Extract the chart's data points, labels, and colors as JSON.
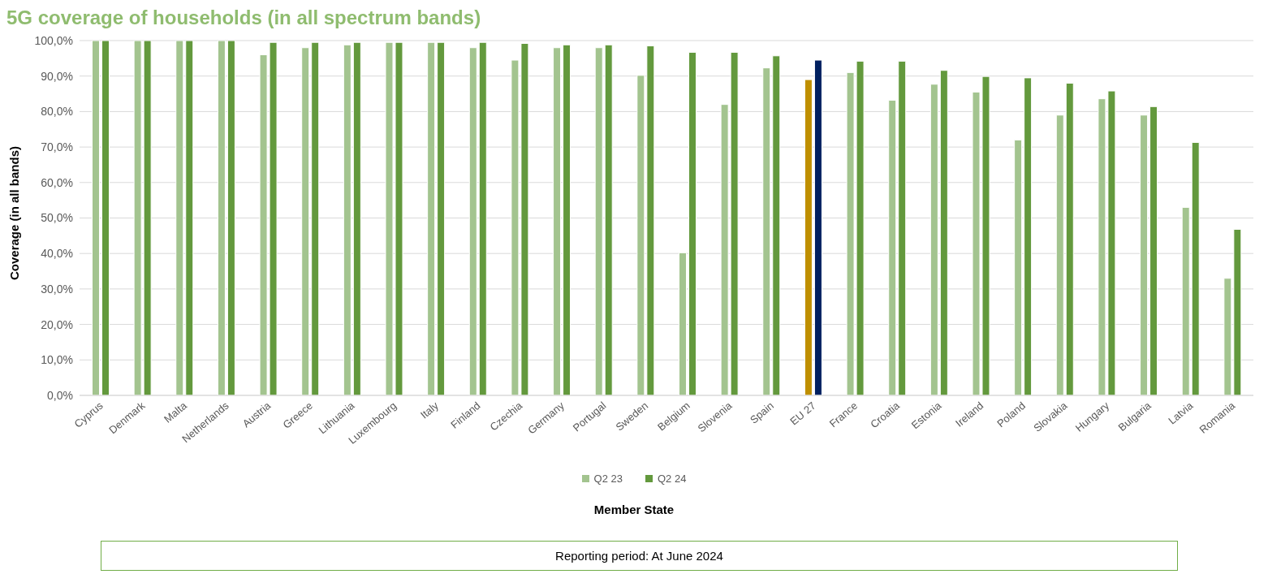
{
  "chart_data": {
    "type": "bar",
    "title": "5G coverage of households (in all spectrum bands)",
    "xlabel": "Member State",
    "ylabel": "Coverage (in all bands)",
    "categories": [
      "Cyprus",
      "Denmark",
      "Malta",
      "Netherlands",
      "Austria",
      "Greece",
      "Lithuania",
      "Luxembourg",
      "Italy",
      "Finland",
      "Czechia",
      "Germany",
      "Portugal",
      "Sweden",
      "Belgium",
      "Slovenia",
      "Spain",
      "EU 27",
      "France",
      "Croatia",
      "Estonia",
      "Ireland",
      "Poland",
      "Slovakia",
      "Hungary",
      "Bulgaria",
      "Latvia",
      "Romania"
    ],
    "series": [
      {
        "name": "Q2 23",
        "color": "#a3c48f",
        "colors": [
          "#a3c48f",
          "#a3c48f",
          "#a3c48f",
          "#a3c48f",
          "#a3c48f",
          "#a3c48f",
          "#a3c48f",
          "#a3c48f",
          "#a3c48f",
          "#a3c48f",
          "#a3c48f",
          "#a3c48f",
          "#a3c48f",
          "#a3c48f",
          "#a3c48f",
          "#a3c48f",
          "#a3c48f",
          "#bf8f00",
          "#a3c48f",
          "#a3c48f",
          "#a3c48f",
          "#a3c48f",
          "#a3c48f",
          "#a3c48f",
          "#a3c48f",
          "#a3c48f",
          "#a3c48f",
          "#a3c48f"
        ],
        "values": [
          100,
          100,
          100,
          100,
          96,
          98,
          98.8,
          99.5,
          99.5,
          98,
          94.5,
          98,
          98,
          90.2,
          40.2,
          82,
          92.3,
          89,
          91,
          83.2,
          87.7,
          85.5,
          72,
          79,
          83.6,
          79,
          53,
          33
        ]
      },
      {
        "name": "Q2 24",
        "color": "#63993d",
        "colors": [
          "#63993d",
          "#63993d",
          "#63993d",
          "#63993d",
          "#63993d",
          "#63993d",
          "#63993d",
          "#63993d",
          "#63993d",
          "#63993d",
          "#63993d",
          "#63993d",
          "#63993d",
          "#63993d",
          "#63993d",
          "#63993d",
          "#63993d",
          "#002060",
          "#63993d",
          "#63993d",
          "#63993d",
          "#63993d",
          "#63993d",
          "#63993d",
          "#63993d",
          "#63993d",
          "#63993d",
          "#63993d"
        ],
        "values": [
          100,
          100,
          100,
          100,
          99.5,
          99.5,
          99.5,
          99.5,
          99.5,
          99.5,
          99.2,
          98.8,
          98.8,
          98.5,
          96.7,
          96.7,
          95.7,
          94.5,
          94.2,
          94.2,
          91.6,
          89.9,
          89.5,
          88,
          85.8,
          81.4,
          71.3,
          46.8
        ]
      }
    ],
    "ylim": [
      0,
      100
    ],
    "yticks": [
      {
        "value": 0,
        "label": "0,0%"
      },
      {
        "value": 10,
        "label": "10,0%"
      },
      {
        "value": 20,
        "label": "20,0%"
      },
      {
        "value": 30,
        "label": "30,0%"
      },
      {
        "value": 40,
        "label": "40,0%"
      },
      {
        "value": 50,
        "label": "50,0%"
      },
      {
        "value": 60,
        "label": "60,0%"
      },
      {
        "value": 70,
        "label": "70,0%"
      },
      {
        "value": 80,
        "label": "80,0%"
      },
      {
        "value": 90,
        "label": "90,0%"
      },
      {
        "value": 100,
        "label": "100,0%"
      }
    ],
    "grid": "y",
    "legend": "bottom",
    "annotations": [
      "Reporting period: At June 2024"
    ]
  }
}
